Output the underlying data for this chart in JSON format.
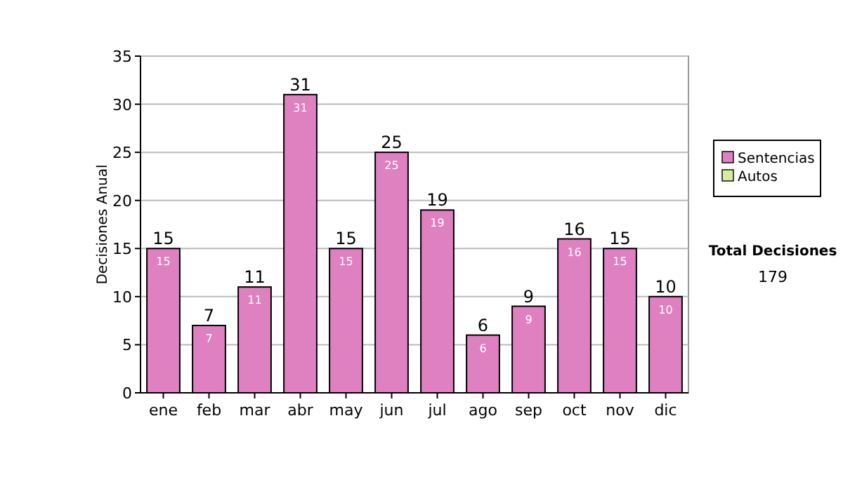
{
  "chart_data": {
    "type": "bar",
    "ylabel": "Decisiones Anual",
    "categories": [
      "ene",
      "feb",
      "mar",
      "abr",
      "may",
      "jun",
      "jul",
      "ago",
      "sep",
      "oct",
      "nov",
      "dic"
    ],
    "series": [
      {
        "name": "Sentencias",
        "color": "#df80c0",
        "values": [
          15,
          7,
          11,
          31,
          15,
          25,
          19,
          6,
          9,
          16,
          15,
          10
        ],
        "value_labels": [
          "15",
          "7",
          "11",
          "31",
          "15",
          "25",
          "19",
          "6",
          "9",
          "16",
          "15",
          "10"
        ]
      },
      {
        "name": "Autos",
        "color": "#d8eca0",
        "values": [
          null,
          null,
          null,
          null,
          null,
          null,
          null,
          null,
          null,
          null,
          null,
          null
        ]
      }
    ],
    "ylim": [
      0,
      35
    ],
    "yticks": [
      0,
      5,
      10,
      15,
      20,
      25,
      30,
      35
    ],
    "stacked": true,
    "totals": [
      "15",
      "7",
      "11",
      "31",
      "15",
      "25",
      "19",
      "6",
      "9",
      "16",
      "15",
      "10"
    ],
    "grid": "y",
    "legend": "right",
    "annotations": [
      "Total Decisiones",
      "179"
    ]
  }
}
